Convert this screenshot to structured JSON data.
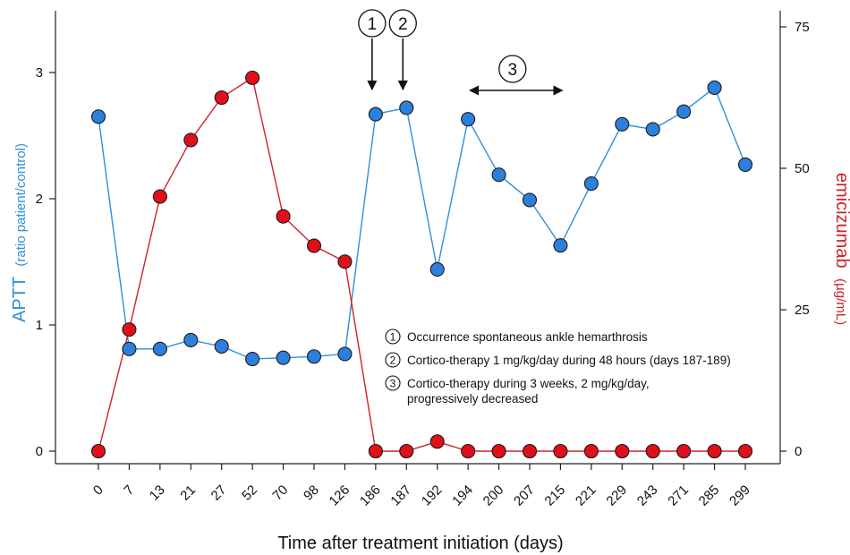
{
  "chart_data": {
    "type": "line",
    "xlabel": "Time after treatment initiation (days)",
    "categories": [
      "0",
      "7",
      "13",
      "21",
      "27",
      "52",
      "70",
      "98",
      "126",
      "186",
      "187",
      "192",
      "194",
      "200",
      "207",
      "215",
      "221",
      "229",
      "243",
      "271",
      "285",
      "299"
    ],
    "y_left": {
      "label": "APTT",
      "unit": "(ratio patient/control)",
      "ylim": [
        0,
        3.4
      ],
      "ticks": [
        0,
        1,
        2,
        3
      ],
      "color": "#2f8fdc"
    },
    "y_right": {
      "label": "emicizumab",
      "unit": "(µg/mL)",
      "ylim": [
        0,
        78
      ],
      "ticks": [
        0,
        25,
        50,
        75
      ],
      "color": "#d0202a"
    },
    "series": [
      {
        "name": "APTT",
        "axis": "left",
        "color": "#2f8fdc",
        "marker_color": "#2d7fdc",
        "values": [
          2.65,
          0.81,
          0.81,
          0.88,
          0.83,
          0.73,
          0.74,
          0.75,
          0.77,
          2.67,
          2.72,
          1.44,
          2.63,
          2.19,
          1.99,
          1.63,
          2.12,
          2.59,
          2.55,
          2.69,
          2.88,
          2.27
        ]
      },
      {
        "name": "emicizumab",
        "axis": "right",
        "color": "#d0202a",
        "marker_color": "#e0101a",
        "values": [
          0,
          21.5,
          45,
          55,
          62.5,
          66,
          41.5,
          36.3,
          33.5,
          0,
          0,
          1.7,
          0,
          0,
          0,
          0,
          0,
          0,
          0,
          0,
          0,
          0
        ]
      }
    ],
    "event_markers": [
      {
        "num": "1",
        "at": "186",
        "type": "down-arrow"
      },
      {
        "num": "2",
        "at": "187",
        "type": "down-arrow"
      },
      {
        "num": "3",
        "from": "194",
        "to": "215",
        "type": "double-arrow"
      }
    ],
    "legend": {
      "placement": "center-right",
      "items": [
        {
          "num": "1",
          "text": "Occurrence spontaneous ankle hemarthrosis"
        },
        {
          "num": "2",
          "text": "Cortico-therapy 1 mg/kg/day during 48 hours (days 187-189)"
        },
        {
          "num": "3",
          "text": "Cortico-therapy during 3 weeks, 2 mg/kg/day,",
          "text2": "progressively decreased"
        }
      ]
    }
  }
}
